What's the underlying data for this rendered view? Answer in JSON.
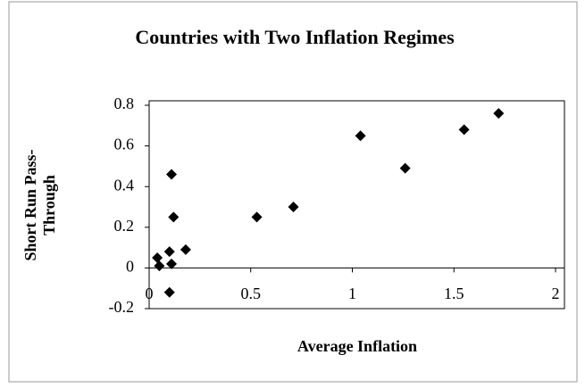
{
  "chart_data": {
    "type": "scatter",
    "title": "Countries with Two Inflation Regimes",
    "xlabel": "Average Inflation",
    "ylabel": "Short Run Pass-Through",
    "x": [
      0.04,
      0.05,
      0.1,
      0.11,
      0.12,
      0.11,
      0.1,
      0.18,
      0.53,
      0.71,
      1.04,
      1.26,
      1.55,
      1.72
    ],
    "values": [
      0.05,
      0.01,
      0.08,
      0.46,
      0.25,
      0.02,
      -0.12,
      0.09,
      0.25,
      0.3,
      0.65,
      0.49,
      0.68,
      0.76
    ],
    "color": "#000000",
    "xlim": [
      0,
      2
    ],
    "xticks": [
      0,
      0.5,
      1,
      1.5,
      2
    ],
    "ylim": [
      -0.2,
      0.8
    ],
    "yticks": [
      -0.2,
      0,
      0.2,
      0.4,
      0.6,
      0.8
    ]
  }
}
